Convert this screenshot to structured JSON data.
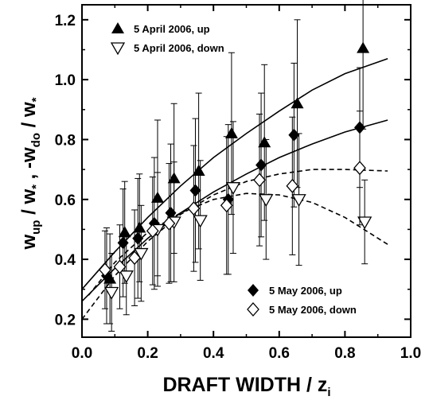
{
  "chart_data": {
    "type": "scatter",
    "xlabel": {
      "main": "DRAFT WIDTH / z",
      "sub": "i"
    },
    "ylabel": {
      "w1": "w",
      "w1_sub": "up",
      "slash1": " / ",
      "w2": "w",
      "w2_sub": "*",
      "comma": " ,  ",
      "neg": "-w",
      "neg_sub": "do",
      "slash2": " / ",
      "w3": "w",
      "w3_sub": "*"
    },
    "xlim": [
      0.0,
      1.0
    ],
    "ylim": [
      0.14,
      1.25
    ],
    "xticks": [
      0.0,
      0.2,
      0.4,
      0.6,
      0.8,
      1.0
    ],
    "xtick_labels": [
      "0.0",
      "0.2",
      "0.4",
      "0.6",
      "0.8",
      "1.0"
    ],
    "yticks": [
      0.2,
      0.4,
      0.6,
      0.8,
      1.0,
      1.2
    ],
    "ytick_labels": [
      "0.2",
      "0.4",
      "0.6",
      "0.8",
      "1.0",
      "1.2"
    ],
    "grid": false,
    "series": [
      {
        "name": "5 April 2006, up",
        "marker": "triangle-up-filled",
        "x": [
          0.085,
          0.13,
          0.175,
          0.23,
          0.28,
          0.355,
          0.455,
          0.555,
          0.655,
          0.855
        ],
        "y": [
          0.335,
          0.49,
          0.505,
          0.605,
          0.67,
          0.695,
          0.82,
          0.79,
          0.92,
          1.105
        ],
        "yerr": [
          0.15,
          0.17,
          0.18,
          0.26,
          0.25,
          0.26,
          0.27,
          0.26,
          0.28,
          0.27
        ]
      },
      {
        "name": "5 April 2006, down",
        "marker": "triangle-down-open",
        "x": [
          0.09,
          0.135,
          0.18,
          0.23,
          0.28,
          0.36,
          0.46,
          0.56,
          0.66,
          0.86
        ],
        "y": [
          0.29,
          0.345,
          0.42,
          0.5,
          0.525,
          0.53,
          0.64,
          0.6,
          0.6,
          0.525
        ],
        "yerr": [
          0.13,
          0.13,
          0.16,
          0.19,
          0.2,
          0.2,
          0.22,
          0.2,
          0.22,
          0.14
        ]
      },
      {
        "name": "5 May 2006, up",
        "marker": "diamond-filled",
        "x": [
          0.075,
          0.125,
          0.17,
          0.22,
          0.27,
          0.345,
          0.445,
          0.545,
          0.645,
          0.845
        ],
        "y": [
          0.345,
          0.455,
          0.47,
          0.52,
          0.555,
          0.63,
          0.6,
          0.715,
          0.815,
          0.84
        ],
        "yerr": [
          0.16,
          0.18,
          0.2,
          0.22,
          0.23,
          0.24,
          0.25,
          0.24,
          0.24,
          0.2
        ]
      },
      {
        "name": "5 May 2006, down",
        "marker": "diamond-open",
        "x": [
          0.07,
          0.115,
          0.16,
          0.215,
          0.265,
          0.34,
          0.44,
          0.54,
          0.64,
          0.845
        ],
        "y": [
          0.365,
          0.375,
          0.405,
          0.495,
          0.52,
          0.57,
          0.58,
          0.665,
          0.645,
          0.705
        ],
        "yerr": [
          0.13,
          0.14,
          0.16,
          0.18,
          0.2,
          0.21,
          0.23,
          0.22,
          0.23,
          0.19
        ]
      }
    ],
    "fits": [
      {
        "for": "5 April 2006, up",
        "style": "solid",
        "x": [
          0.0,
          0.1,
          0.2,
          0.3,
          0.4,
          0.5,
          0.6,
          0.7,
          0.8,
          0.93
        ],
        "y": [
          0.3,
          0.425,
          0.54,
          0.645,
          0.74,
          0.82,
          0.895,
          0.965,
          1.02,
          1.07
        ]
      },
      {
        "for": "5 May 2006, up",
        "style": "solid",
        "x": [
          0.0,
          0.1,
          0.2,
          0.3,
          0.4,
          0.5,
          0.6,
          0.7,
          0.8,
          0.93
        ],
        "y": [
          0.26,
          0.37,
          0.47,
          0.555,
          0.625,
          0.685,
          0.74,
          0.785,
          0.825,
          0.865
        ]
      },
      {
        "for": "5 May 2006, down",
        "style": "dashed",
        "x": [
          0.0,
          0.1,
          0.2,
          0.3,
          0.4,
          0.5,
          0.6,
          0.7,
          0.8,
          0.93
        ],
        "y": [
          0.2,
          0.345,
          0.46,
          0.55,
          0.615,
          0.66,
          0.685,
          0.7,
          0.7,
          0.695
        ]
      },
      {
        "for": "5 April 2006, down",
        "style": "dashed",
        "x": [
          0.02,
          0.1,
          0.2,
          0.3,
          0.4,
          0.5,
          0.6,
          0.7,
          0.8,
          0.93
        ],
        "y": [
          0.28,
          0.39,
          0.49,
          0.555,
          0.6,
          0.62,
          0.615,
          0.59,
          0.54,
          0.45
        ]
      }
    ],
    "legends": [
      {
        "placement": "top-left",
        "entries": [
          "5 April 2006, up",
          "5 April 2006, down"
        ]
      },
      {
        "placement": "bottom-right",
        "entries": [
          "5 May 2006, up",
          "5 May 2006, down"
        ]
      }
    ]
  }
}
